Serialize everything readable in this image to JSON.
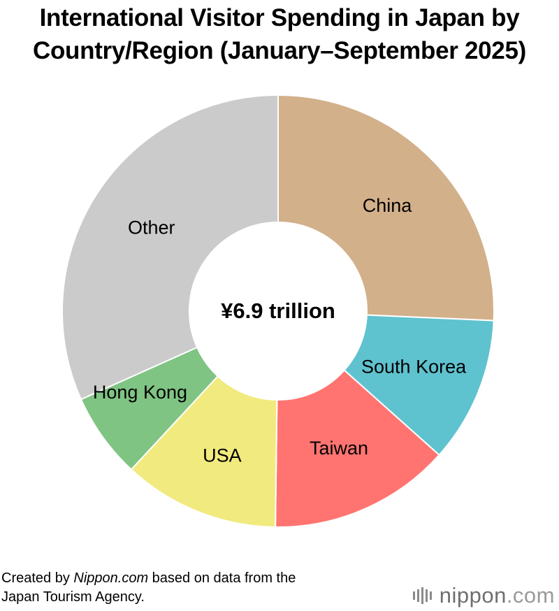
{
  "chart_data": {
    "type": "pie",
    "variant": "donut",
    "title_lines": [
      "International Visitor Spending in Japan by",
      "Country/Region (January–September 2025)"
    ],
    "center_label": "¥6.9 trillion",
    "slices": [
      {
        "label": "China",
        "value": 25.7,
        "color": "#d2b08a"
      },
      {
        "label": "South Korea",
        "value": 10.9,
        "color": "#5fc2cf"
      },
      {
        "label": "Taiwan",
        "value": 13.6,
        "color": "#ff7470"
      },
      {
        "label": "USA",
        "value": 11.7,
        "color": "#f1ea7e"
      },
      {
        "label": "Hong Kong",
        "value": 6.4,
        "color": "#7fc483"
      },
      {
        "label": "Other",
        "value": 31.7,
        "color": "#cbcbcb"
      }
    ],
    "legend": "none"
  },
  "source": {
    "line1_prefix": "Created by ",
    "line1_site": "Nippon.com",
    "line1_suffix": " based on data from the",
    "line2": "Japan Tourism Agency."
  },
  "logo": {
    "text_strong": "nippon",
    "text_light": ".com",
    "icon": "nippon-bars-icon"
  }
}
